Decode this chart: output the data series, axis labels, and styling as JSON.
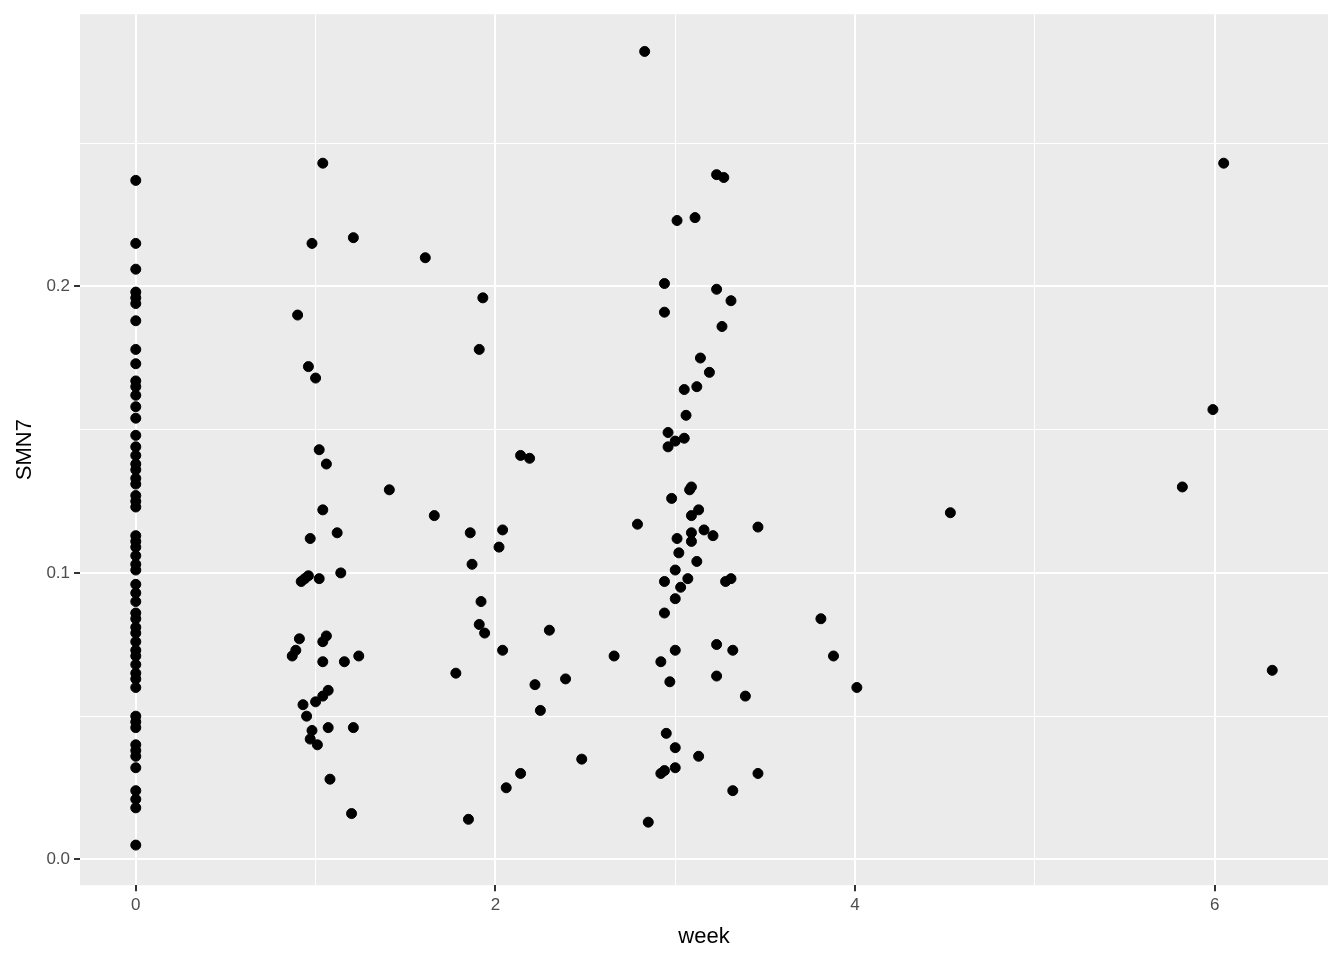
{
  "chart_data": {
    "type": "scatter",
    "xlabel": "week",
    "ylabel": "SMN7",
    "marker": "circle",
    "grid": true,
    "legend": false,
    "xlim": [
      -0.31,
      6.63
    ],
    "ylim": [
      -0.009,
      0.295
    ],
    "xticks": [
      0,
      {
        "value": 1,
        "label": null
      },
      2,
      {
        "value": 3,
        "label": null
      },
      4,
      {
        "value": 5,
        "label": null
      },
      6
    ],
    "yticks": [
      {
        "value": 0,
        "label": "0.0"
      },
      {
        "value": 0.05,
        "label": null
      },
      0.1,
      {
        "value": 0.15,
        "label": null
      },
      0.2,
      {
        "value": 0.25,
        "label": null
      }
    ],
    "series": [
      {
        "color": "#000000",
        "x": [
          0,
          0,
          0,
          0,
          0,
          0,
          0,
          0,
          0,
          0,
          0,
          0,
          0,
          0,
          0,
          0,
          0,
          0,
          0,
          0,
          0,
          0,
          0,
          0,
          0,
          0,
          0,
          0,
          0,
          0,
          0,
          0,
          0,
          0,
          0,
          0,
          0,
          0,
          0,
          0,
          0,
          0,
          0,
          0,
          0,
          0,
          0,
          0,
          0,
          0,
          0,
          0,
          0,
          0,
          0,
          1.04,
          0.98,
          1.21,
          0.9,
          0.96,
          1.0,
          1.02,
          1.06,
          1.04,
          1.12,
          0.97,
          1.14,
          0.96,
          1.02,
          0.92,
          0.94,
          1.06,
          0.91,
          1.04,
          0.89,
          0.87,
          1.24,
          1.04,
          1.16,
          1.07,
          1.04,
          0.93,
          1.0,
          0.95,
          0.98,
          1.21,
          1.07,
          0.97,
          1.01,
          1.08,
          1.2,
          1.41,
          1.61,
          1.66,
          1.78,
          1.93,
          1.91,
          1.86,
          1.87,
          2.04,
          2.02,
          2.14,
          2.19,
          1.92,
          1.91,
          1.94,
          2.04,
          2.3,
          2.22,
          2.39,
          2.25,
          2.14,
          2.06,
          2.48,
          1.85,
          2.66,
          2.83,
          2.85,
          2.79,
          3.01,
          3.11,
          3.23,
          3.27,
          2.94,
          2.94,
          3.23,
          3.31,
          3.26,
          3.14,
          3.19,
          3.12,
          3.05,
          3.06,
          2.96,
          3.05,
          3.0,
          2.96,
          3.09,
          3.08,
          2.98,
          3.13,
          3.09,
          3.16,
          3.09,
          3.21,
          3.01,
          3.09,
          3.02,
          3.12,
          3.0,
          3.31,
          3.07,
          2.94,
          3.28,
          3.03,
          3.0,
          2.94,
          3.23,
          3.32,
          3.0,
          2.92,
          3.23,
          2.97,
          3.39,
          2.95,
          3.0,
          3.13,
          2.94,
          3.0,
          2.92,
          3.32,
          3.46,
          3.46,
          3.81,
          3.88,
          4.01,
          4.53,
          5.82,
          5.99,
          6.05,
          6.32
        ],
        "values": [
          0.237,
          0.215,
          0.206,
          0.198,
          0.196,
          0.194,
          0.188,
          0.178,
          0.173,
          0.167,
          0.165,
          0.162,
          0.158,
          0.154,
          0.148,
          0.144,
          0.141,
          0.138,
          0.136,
          0.133,
          0.131,
          0.127,
          0.125,
          0.123,
          0.113,
          0.111,
          0.109,
          0.106,
          0.103,
          0.101,
          0.096,
          0.093,
          0.09,
          0.086,
          0.084,
          0.081,
          0.079,
          0.076,
          0.073,
          0.071,
          0.068,
          0.065,
          0.063,
          0.06,
          0.05,
          0.048,
          0.046,
          0.04,
          0.038,
          0.036,
          0.032,
          0.024,
          0.021,
          0.018,
          0.005,
          0.243,
          0.215,
          0.217,
          0.19,
          0.172,
          0.168,
          0.143,
          0.138,
          0.122,
          0.114,
          0.112,
          0.1,
          0.099,
          0.098,
          0.097,
          0.098,
          0.078,
          0.077,
          0.076,
          0.073,
          0.071,
          0.071,
          0.069,
          0.069,
          0.059,
          0.057,
          0.054,
          0.055,
          0.05,
          0.045,
          0.046,
          0.046,
          0.042,
          0.04,
          0.028,
          0.016,
          0.129,
          0.21,
          0.12,
          0.065,
          0.196,
          0.178,
          0.114,
          0.103,
          0.115,
          0.109,
          0.141,
          0.14,
          0.09,
          0.082,
          0.079,
          0.073,
          0.08,
          0.061,
          0.063,
          0.052,
          0.03,
          0.025,
          0.035,
          0.014,
          0.071,
          0.282,
          0.013,
          0.117,
          0.223,
          0.224,
          0.239,
          0.238,
          0.201,
          0.191,
          0.199,
          0.195,
          0.186,
          0.175,
          0.17,
          0.165,
          0.164,
          0.155,
          0.149,
          0.147,
          0.146,
          0.144,
          0.13,
          0.129,
          0.126,
          0.122,
          0.12,
          0.115,
          0.114,
          0.113,
          0.112,
          0.111,
          0.107,
          0.104,
          0.101,
          0.098,
          0.098,
          0.097,
          0.097,
          0.095,
          0.091,
          0.086,
          0.075,
          0.073,
          0.073,
          0.069,
          0.064,
          0.062,
          0.057,
          0.044,
          0.039,
          0.036,
          0.031,
          0.032,
          0.03,
          0.024,
          0.03,
          0.116,
          0.084,
          0.071,
          0.06,
          0.121,
          0.13,
          0.157,
          0.243,
          0.066
        ]
      }
    ]
  }
}
